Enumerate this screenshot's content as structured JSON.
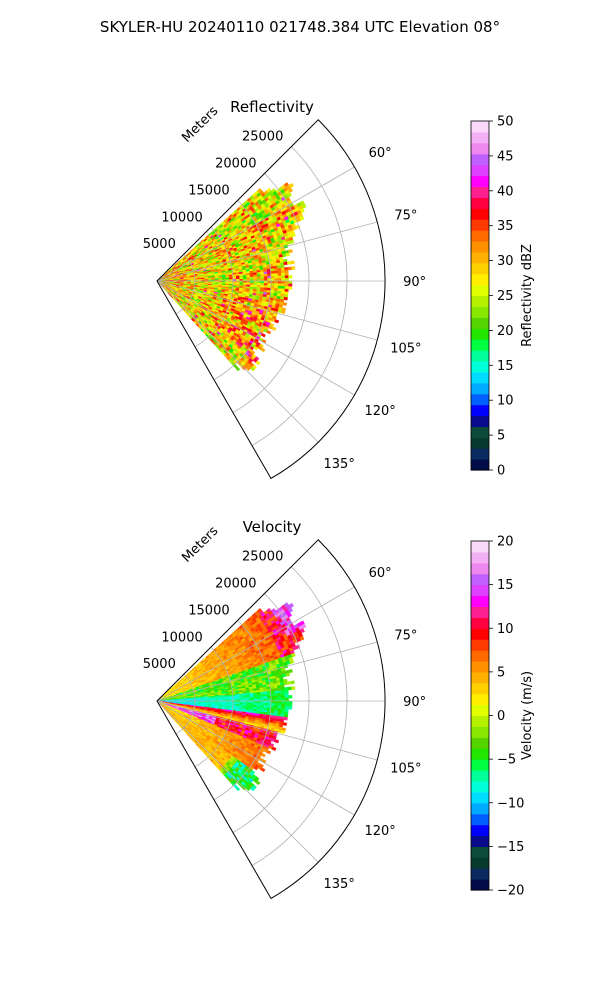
{
  "suptitle": "SKYLER-HU  20240110  021748.384 UTC Elevation 08°",
  "chart_data": [
    {
      "type": "heatmap",
      "title": "Reflectivity",
      "sector_deg": [
        45,
        150
      ],
      "range_ticks": [
        5000,
        10000,
        15000,
        20000,
        25000
      ],
      "range_label": "Meters",
      "angle_ticks": [
        "60°",
        "75°",
        "90°",
        "105°",
        "120°",
        "135°"
      ],
      "angle_values": [
        60,
        75,
        90,
        105,
        120,
        135
      ],
      "colorbar": {
        "label": "Reflectivity dBZ",
        "min": 0,
        "max": 50,
        "ticks": [
          "0",
          "5",
          "10",
          "15",
          "20",
          "25",
          "30",
          "35",
          "40",
          "45",
          "50"
        ],
        "colors": [
          "#040c4a",
          "#0b2a60",
          "#063a2e",
          "#0c4a3a",
          "#0a0a8c",
          "#0000ff",
          "#0060ff",
          "#00aaff",
          "#00dcff",
          "#00ffd8",
          "#00ff9a",
          "#00ff40",
          "#22e600",
          "#55d400",
          "#88e800",
          "#b4f000",
          "#e0ff00",
          "#ffee00",
          "#ffd000",
          "#ffb000",
          "#ff9000",
          "#ff6a00",
          "#ff3a00",
          "#ff0000",
          "#ff0040",
          "#ff2090",
          "#ff00ff",
          "#e040ff",
          "#c060ff",
          "#ee88ee",
          "#f4b0f4",
          "#fad8fa"
        ]
      }
    },
    {
      "type": "heatmap",
      "title": "Velocity",
      "sector_deg": [
        45,
        150
      ],
      "range_ticks": [
        5000,
        10000,
        15000,
        20000,
        25000
      ],
      "range_label": "Meters",
      "angle_ticks": [
        "60°",
        "75°",
        "90°",
        "105°",
        "120°",
        "135°"
      ],
      "angle_values": [
        60,
        75,
        90,
        105,
        120,
        135
      ],
      "colorbar": {
        "label": "Velocity (m/s)",
        "min": -20,
        "max": 20,
        "ticks": [
          "−20",
          "−15",
          "−10",
          "−5",
          "0",
          "5",
          "10",
          "15",
          "20"
        ],
        "colors": [
          "#040c4a",
          "#0b2a60",
          "#063a2e",
          "#0c4a3a",
          "#0a0a8c",
          "#0000ff",
          "#0060ff",
          "#00aaff",
          "#00dcff",
          "#00ffd8",
          "#00ff9a",
          "#00ff40",
          "#22e600",
          "#55d400",
          "#88e800",
          "#b4f000",
          "#e0ff00",
          "#ffee00",
          "#ffd000",
          "#ffb000",
          "#ff9000",
          "#ff6a00",
          "#ff3a00",
          "#ff0000",
          "#ff0040",
          "#ff2090",
          "#ff00ff",
          "#e040ff",
          "#c060ff",
          "#ee88ee",
          "#f4b0f4",
          "#fad8fa"
        ]
      }
    }
  ]
}
